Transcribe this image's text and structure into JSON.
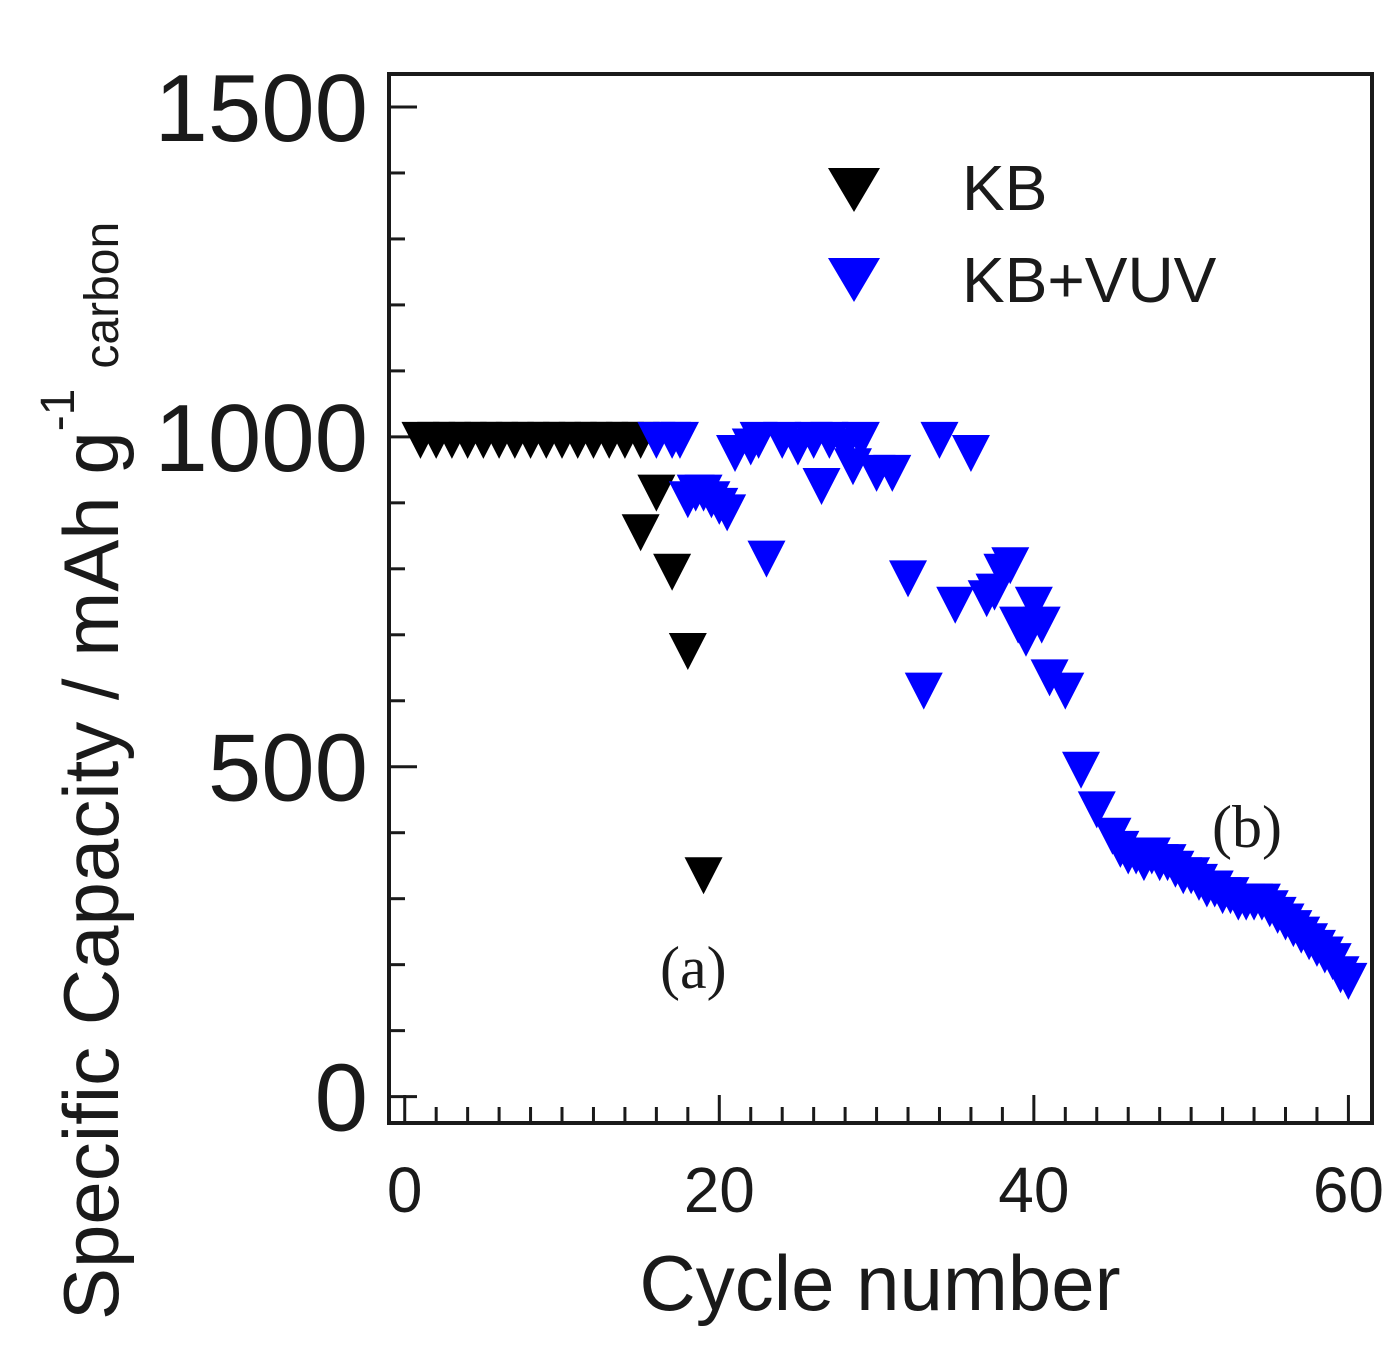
{
  "chart_data": {
    "type": "scatter",
    "title": "",
    "xlabel": "Cycle number",
    "ylabel": {
      "main": "Specific Capacity / mAh g",
      "superscript": "-1",
      "subscript": "carbon"
    },
    "xlim": [
      -1,
      61.5
    ],
    "ylim": [
      -40,
      1550
    ],
    "xticks": [
      0,
      20,
      40,
      60
    ],
    "yticks": [
      0,
      500,
      1000,
      1500
    ],
    "x_minor_step": 2,
    "y_minor_step": 100,
    "grid": false,
    "legend_position": "top-right",
    "marker": "down-triangle",
    "colors": {
      "KB": "#000000",
      "KB+VUV": "#0000ff",
      "axis": "#1a1a1a"
    },
    "series": [
      {
        "name": "KB",
        "x": [
          1,
          2,
          3,
          4,
          5,
          6,
          7,
          8,
          9,
          10,
          11,
          12,
          13,
          14,
          15,
          15,
          16,
          17,
          18,
          19
        ],
        "y": [
          1000,
          1000,
          1000,
          1000,
          1000,
          1000,
          1000,
          1000,
          1000,
          1000,
          1000,
          1000,
          1000,
          1000,
          1000,
          860,
          920,
          800,
          680,
          340
        ]
      },
      {
        "name": "KB+VUV",
        "x": [
          16,
          17,
          17.5,
          18,
          18.5,
          19,
          19.5,
          20,
          20.5,
          21,
          22,
          22.5,
          23,
          24,
          25,
          26,
          26.5,
          27,
          28,
          28.5,
          29,
          30,
          31,
          32,
          33,
          34,
          35,
          36,
          37,
          37.5,
          38,
          38.5,
          39,
          39.5,
          40,
          40.5,
          41,
          42,
          43,
          44,
          45,
          45.5,
          46,
          46.5,
          47,
          47.5,
          48,
          48.5,
          49,
          49.5,
          50,
          50.5,
          51,
          51.5,
          52,
          52.5,
          53,
          53.5,
          54,
          54.5,
          55,
          55.5,
          56,
          56.5,
          57,
          57.5,
          58,
          58.5,
          59,
          59.5,
          60
        ],
        "y": [
          1000,
          1000,
          1000,
          910,
          920,
          920,
          910,
          900,
          890,
          980,
          990,
          1000,
          820,
          1000,
          990,
          1000,
          930,
          1000,
          990,
          960,
          1000,
          950,
          950,
          790,
          620,
          1000,
          750,
          980,
          760,
          770,
          800,
          810,
          720,
          700,
          750,
          720,
          640,
          620,
          500,
          440,
          400,
          380,
          370,
          370,
          360,
          370,
          360,
          360,
          350,
          340,
          340,
          330,
          320,
          320,
          310,
          310,
          300,
          300,
          300,
          300,
          290,
          280,
          270,
          260,
          250,
          240,
          230,
          220,
          210,
          190,
          180
        ]
      }
    ],
    "annotations": [
      "(a)",
      "(b)"
    ]
  }
}
